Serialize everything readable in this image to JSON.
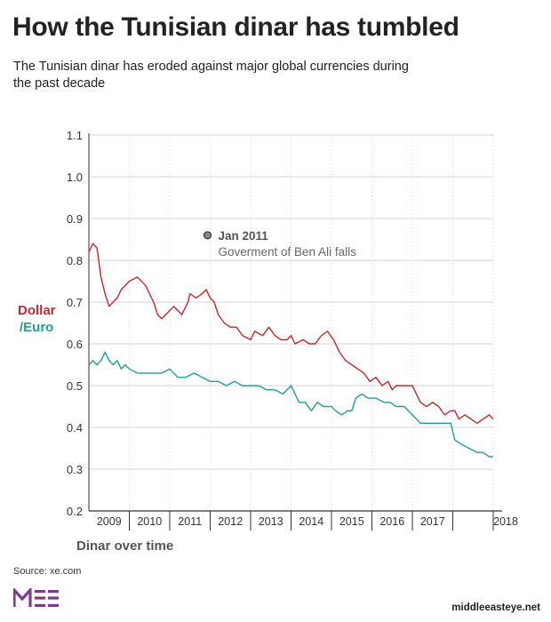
{
  "title": "How the Tunisian dinar has tumbled",
  "subtitle": "The Tunisian dinar has eroded against major global currencies during the past decade",
  "series_labels": {
    "dollar": "Dollar",
    "euro": "/Euro"
  },
  "x_title": "Dinar over time",
  "source": "Source: xe.com",
  "site": "middleeasteye.net",
  "colors": {
    "dollar": "#c0282d",
    "euro": "#1f9e96",
    "grid": "#d6d6d6",
    "axis": "#333333"
  },
  "chart_data": {
    "type": "line",
    "title": "How the Tunisian dinar has tumbled",
    "xlabel": "Dinar over time",
    "ylabel": "",
    "xlim": [
      2008.0,
      2018.0
    ],
    "ylim": [
      0.2,
      1.1
    ],
    "yticks": [
      0.2,
      0.3,
      0.4,
      0.5,
      0.6,
      0.7,
      0.8,
      0.9,
      1.0,
      1.1
    ],
    "xticks": [
      2009,
      2010,
      2011,
      2012,
      2013,
      2014,
      2015,
      2016,
      2017,
      2018
    ],
    "grid": true,
    "annotation": {
      "x": 2011.0,
      "y": 0.86,
      "title": "Jan 2011",
      "text": "Goverment of Ben Ali falls"
    },
    "series": [
      {
        "name": "Dollar",
        "x": [
          2008.0,
          2008.1,
          2008.2,
          2008.3,
          2008.4,
          2008.5,
          2008.6,
          2008.7,
          2008.8,
          2008.9,
          2009.0,
          2009.2,
          2009.4,
          2009.6,
          2009.7,
          2009.8,
          2009.9,
          2010.1,
          2010.2,
          2010.3,
          2010.45,
          2010.5,
          2010.65,
          2010.8,
          2010.9,
          2011.0,
          2011.1,
          2011.2,
          2011.35,
          2011.5,
          2011.65,
          2011.8,
          2012.0,
          2012.1,
          2012.3,
          2012.45,
          2012.6,
          2012.75,
          2012.9,
          2013.0,
          2013.1,
          2013.3,
          2013.45,
          2013.6,
          2013.75,
          2013.9,
          2014.05,
          2014.2,
          2014.35,
          2014.5,
          2014.65,
          2014.8,
          2014.95,
          2015.1,
          2015.25,
          2015.4,
          2015.5,
          2015.6,
          2015.75,
          2015.9,
          2016.0,
          2016.1,
          2016.2,
          2016.35,
          2016.5,
          2016.65,
          2016.8,
          2016.95,
          2017.05,
          2017.15,
          2017.3,
          2017.45,
          2017.6,
          2017.75,
          2017.9,
          2018.0
        ],
        "values": [
          0.82,
          0.84,
          0.83,
          0.76,
          0.72,
          0.69,
          0.7,
          0.71,
          0.73,
          0.74,
          0.75,
          0.76,
          0.74,
          0.7,
          0.67,
          0.66,
          0.67,
          0.69,
          0.68,
          0.67,
          0.7,
          0.72,
          0.71,
          0.72,
          0.73,
          0.71,
          0.7,
          0.67,
          0.65,
          0.64,
          0.64,
          0.62,
          0.61,
          0.63,
          0.62,
          0.64,
          0.62,
          0.61,
          0.61,
          0.62,
          0.6,
          0.61,
          0.6,
          0.6,
          0.62,
          0.63,
          0.61,
          0.58,
          0.56,
          0.55,
          0.54,
          0.53,
          0.51,
          0.52,
          0.5,
          0.51,
          0.49,
          0.5,
          0.5,
          0.5,
          0.5,
          0.48,
          0.46,
          0.45,
          0.46,
          0.45,
          0.43,
          0.44,
          0.44,
          0.42,
          0.43,
          0.42,
          0.41,
          0.42,
          0.43,
          0.42
        ]
      },
      {
        "name": "/Euro",
        "x": [
          2008.0,
          2008.1,
          2008.2,
          2008.3,
          2008.4,
          2008.5,
          2008.6,
          2008.7,
          2008.8,
          2008.9,
          2009.0,
          2009.2,
          2009.4,
          2009.6,
          2009.8,
          2010.0,
          2010.2,
          2010.4,
          2010.6,
          2010.8,
          2011.0,
          2011.2,
          2011.4,
          2011.6,
          2011.8,
          2012.0,
          2012.2,
          2012.4,
          2012.6,
          2012.8,
          2013.0,
          2013.1,
          2013.2,
          2013.35,
          2013.5,
          2013.65,
          2013.8,
          2014.0,
          2014.1,
          2014.25,
          2014.4,
          2014.5,
          2014.6,
          2014.75,
          2014.9,
          2015.1,
          2015.3,
          2015.45,
          2015.6,
          2015.8,
          2016.0,
          2016.2,
          2016.4,
          2016.6,
          2016.8,
          2016.95,
          2017.05,
          2017.2,
          2017.4,
          2017.6,
          2017.75,
          2017.9,
          2018.0
        ],
        "values": [
          0.55,
          0.56,
          0.55,
          0.56,
          0.58,
          0.56,
          0.55,
          0.56,
          0.54,
          0.55,
          0.54,
          0.53,
          0.53,
          0.53,
          0.53,
          0.54,
          0.52,
          0.52,
          0.53,
          0.52,
          0.51,
          0.51,
          0.5,
          0.51,
          0.5,
          0.5,
          0.5,
          0.49,
          0.49,
          0.48,
          0.5,
          0.48,
          0.46,
          0.46,
          0.44,
          0.46,
          0.45,
          0.45,
          0.44,
          0.43,
          0.44,
          0.44,
          0.47,
          0.48,
          0.47,
          0.47,
          0.46,
          0.46,
          0.45,
          0.45,
          0.43,
          0.41,
          0.41,
          0.41,
          0.41,
          0.41,
          0.37,
          0.36,
          0.35,
          0.34,
          0.34,
          0.33,
          0.33
        ]
      }
    ]
  }
}
